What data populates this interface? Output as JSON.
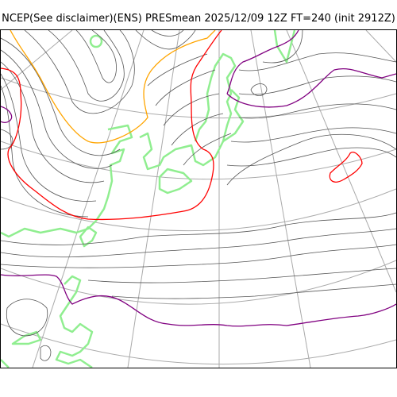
{
  "title": "NCEP(See disclaimer)(ENS) PRESmean 2025/12/09 12Z FT=240 (init 2912Z)",
  "colors": {
    "isobar": "#555555",
    "grid": "#aaaaaa",
    "coastline": "#90ee90",
    "contour_orange": "#ffa500",
    "contour_red": "#ff0000",
    "contour_purple": "#800080"
  }
}
